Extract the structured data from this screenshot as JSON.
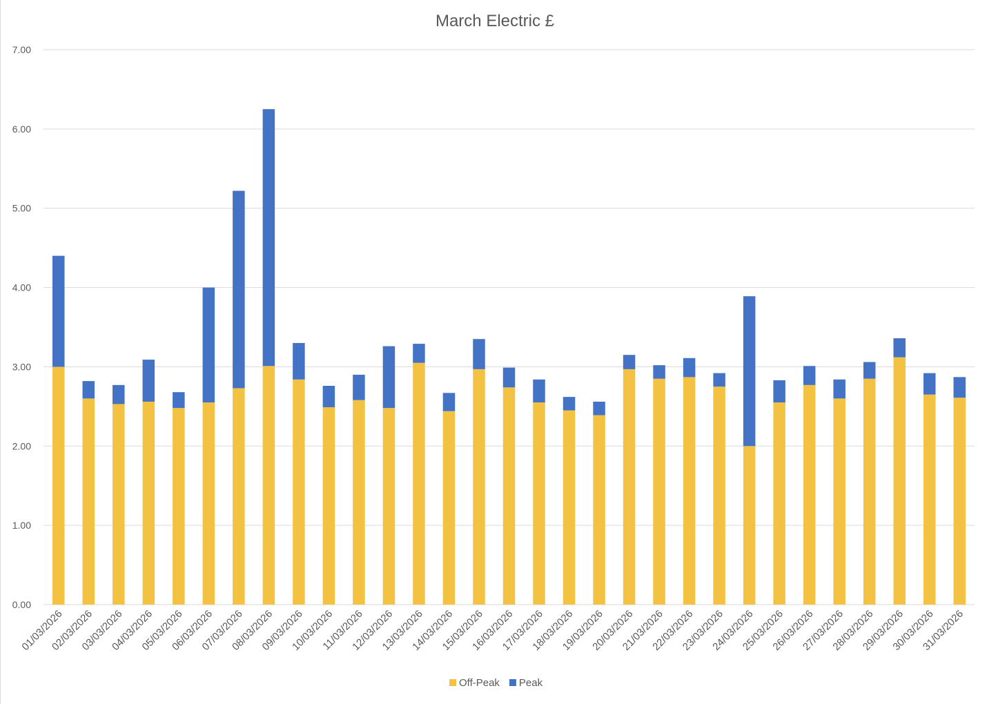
{
  "chart_data": {
    "type": "bar",
    "stacked": true,
    "title": "March Electric £",
    "xlabel": "",
    "ylabel": "",
    "ylim": [
      0,
      7
    ],
    "y_ticks": [
      "0.00",
      "1.00",
      "2.00",
      "3.00",
      "4.00",
      "5.00",
      "6.00",
      "7.00"
    ],
    "grid": true,
    "legend_position": "bottom",
    "categories": [
      "01/03/2026",
      "02/03/2026",
      "03/03/2026",
      "04/03/2026",
      "05/03/2026",
      "06/03/2026",
      "07/03/2026",
      "08/03/2026",
      "09/03/2026",
      "10/03/2026",
      "11/03/2026",
      "12/03/2026",
      "13/03/2026",
      "14/03/2026",
      "15/03/2026",
      "16/03/2026",
      "17/03/2026",
      "18/03/2026",
      "19/03/2026",
      "20/03/2026",
      "21/03/2026",
      "22/03/2026",
      "23/03/2026",
      "24/03/2026",
      "25/03/2026",
      "26/03/2026",
      "27/03/2026",
      "28/03/2026",
      "29/03/2026",
      "30/03/2026",
      "31/03/2026"
    ],
    "series": [
      {
        "name": "Off-Peak",
        "color": "#F4C242",
        "values": [
          3.0,
          2.6,
          2.53,
          2.56,
          2.48,
          2.55,
          2.73,
          3.01,
          2.84,
          2.49,
          2.58,
          2.48,
          3.05,
          2.44,
          2.97,
          2.74,
          2.55,
          2.45,
          2.39,
          2.97,
          2.85,
          2.87,
          2.75,
          2.0,
          2.55,
          2.77,
          2.6,
          2.85,
          3.12,
          2.65,
          2.61
        ]
      },
      {
        "name": "Peak",
        "color": "#4472C4",
        "values": [
          1.4,
          0.22,
          0.24,
          0.53,
          0.2,
          1.45,
          2.49,
          3.24,
          0.46,
          0.27,
          0.32,
          0.78,
          0.24,
          0.23,
          0.38,
          0.25,
          0.29,
          0.17,
          0.17,
          0.18,
          0.17,
          0.24,
          0.17,
          1.89,
          0.28,
          0.24,
          0.24,
          0.21,
          0.24,
          0.27,
          0.26
        ]
      }
    ]
  }
}
